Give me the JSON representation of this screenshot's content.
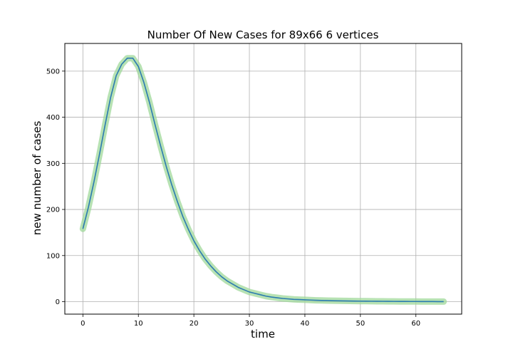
{
  "chart_data": {
    "type": "line",
    "title": "Number Of New Cases for 89x66 6 vertices",
    "xlabel": "time",
    "ylabel": "new number of cases",
    "xlim": [
      -3.25,
      68.25
    ],
    "ylim": [
      -27,
      560
    ],
    "xticks": [
      0,
      10,
      20,
      30,
      40,
      50,
      60
    ],
    "yticks": [
      0,
      100,
      200,
      300,
      400,
      500
    ],
    "grid": true,
    "colors": {
      "line": "#2b7bb0",
      "band": "#9fd89a"
    },
    "x": [
      0,
      1,
      2,
      3,
      4,
      5,
      6,
      7,
      8,
      9,
      10,
      11,
      12,
      13,
      14,
      15,
      16,
      17,
      18,
      19,
      20,
      21,
      22,
      23,
      24,
      25,
      26,
      27,
      28,
      29,
      30,
      31,
      32,
      33,
      34,
      35,
      36,
      37,
      38,
      39,
      40,
      41,
      42,
      43,
      44,
      45,
      46,
      47,
      48,
      49,
      50,
      51,
      52,
      53,
      54,
      55,
      56,
      57,
      58,
      59,
      60,
      61,
      62,
      63,
      64,
      65
    ],
    "series": [
      {
        "values": [
          158,
          205,
          260,
          320,
          383,
          443,
          490,
          515,
          528,
          528,
          510,
          475,
          432,
          384,
          338,
          294,
          254,
          218,
          185,
          157,
          132,
          111,
          93,
          78,
          65,
          54,
          45,
          38,
          31,
          26,
          21,
          18,
          15,
          12,
          10,
          8.5,
          7,
          6,
          5,
          4.5,
          4,
          3.5,
          3,
          2.7,
          2.4,
          2.1,
          1.9,
          1.7,
          1.5,
          1.3,
          1.2,
          1.1,
          1,
          0.9,
          0.8,
          0.7,
          0.6,
          0.5,
          0.5,
          0.4,
          0.4,
          0.3,
          0.3,
          0.3,
          0.2,
          0.2
        ]
      }
    ]
  }
}
